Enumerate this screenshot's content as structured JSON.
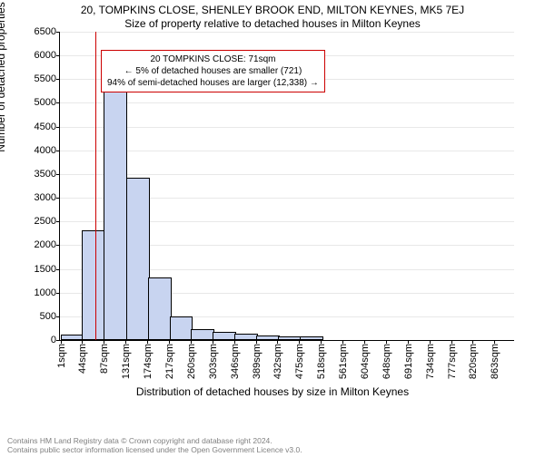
{
  "titles": {
    "main": "20, TOMPKINS CLOSE, SHENLEY BROOK END, MILTON KEYNES, MK5 7EJ",
    "sub": "Size of property relative to detached houses in Milton Keynes"
  },
  "axes": {
    "ylabel": "Number of detached properties",
    "xlabel": "Distribution of detached houses by size in Milton Keynes",
    "ylim_max": 6500,
    "ytick_step": 500,
    "xtick_labels": [
      "1sqm",
      "44sqm",
      "87sqm",
      "131sqm",
      "174sqm",
      "217sqm",
      "260sqm",
      "303sqm",
      "346sqm",
      "389sqm",
      "432sqm",
      "475sqm",
      "518sqm",
      "561sqm",
      "604sqm",
      "648sqm",
      "691sqm",
      "734sqm",
      "777sqm",
      "820sqm",
      "863sqm"
    ],
    "xtick_step_sqm": 43,
    "x_max_sqm": 900
  },
  "chart": {
    "type": "histogram",
    "bar_fill": "#c8d4f0",
    "bar_stroke": "#000000",
    "bar_stroke_width": 0.5,
    "grid_color": "#e8e8e8",
    "background": "#ffffff",
    "marker_color": "#cc0000",
    "marker_sqm": 71,
    "bin_width_sqm": 43,
    "bins": [
      {
        "start": 1,
        "count": 80
      },
      {
        "start": 44,
        "count": 2270
      },
      {
        "start": 87,
        "count": 5460
      },
      {
        "start": 131,
        "count": 3380
      },
      {
        "start": 174,
        "count": 1280
      },
      {
        "start": 217,
        "count": 450
      },
      {
        "start": 260,
        "count": 200
      },
      {
        "start": 303,
        "count": 130
      },
      {
        "start": 346,
        "count": 90
      },
      {
        "start": 389,
        "count": 60
      },
      {
        "start": 432,
        "count": 40
      },
      {
        "start": 475,
        "count": 30
      },
      {
        "start": 518,
        "count": 0
      },
      {
        "start": 561,
        "count": 0
      },
      {
        "start": 604,
        "count": 0
      },
      {
        "start": 648,
        "count": 0
      },
      {
        "start": 691,
        "count": 0
      },
      {
        "start": 734,
        "count": 0
      },
      {
        "start": 777,
        "count": 0
      },
      {
        "start": 820,
        "count": 0
      }
    ]
  },
  "annotation": {
    "line1": "20 TOMPKINS CLOSE: 71sqm",
    "line2": "← 5% of detached houses are smaller (721)",
    "line3": "94% of semi-detached houses are larger (12,338) →"
  },
  "footer": {
    "line1": "Contains HM Land Registry data © Crown copyright and database right 2024.",
    "line2": "Contains public sector information licensed under the Open Government Licence v3.0."
  }
}
